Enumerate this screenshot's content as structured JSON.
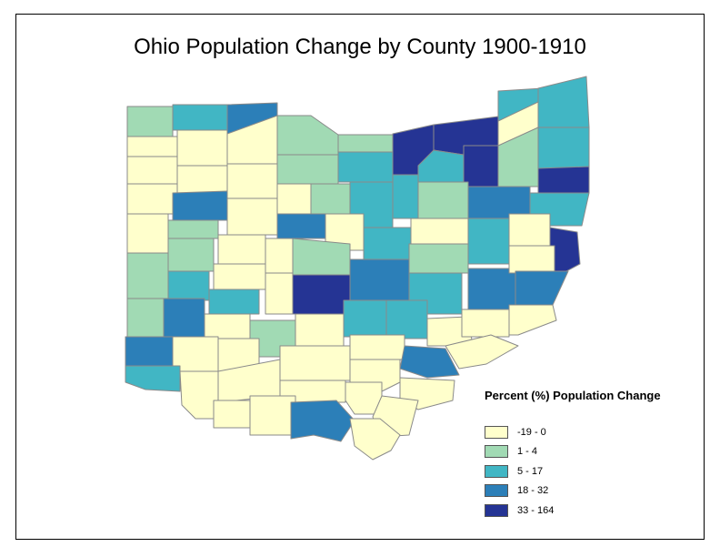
{
  "title": "Ohio Population Change by County 1900-1910",
  "colors": {
    "c1": "#ffffcc",
    "c2": "#a1dab4",
    "c3": "#41b6c4",
    "c4": "#2c7fb8",
    "c5": "#253494",
    "border": "#8a8a8a"
  },
  "legend": {
    "title": "Percent (%) Population Change",
    "items": [
      {
        "label": "-19 - 0",
        "color": "#ffffcc"
      },
      {
        "label": "1 - 4",
        "color": "#a1dab4"
      },
      {
        "label": "5 - 17",
        "color": "#41b6c4"
      },
      {
        "label": "18 - 32",
        "color": "#2c7fb8"
      },
      {
        "label": "33 - 164",
        "color": "#253494"
      }
    ]
  }
}
